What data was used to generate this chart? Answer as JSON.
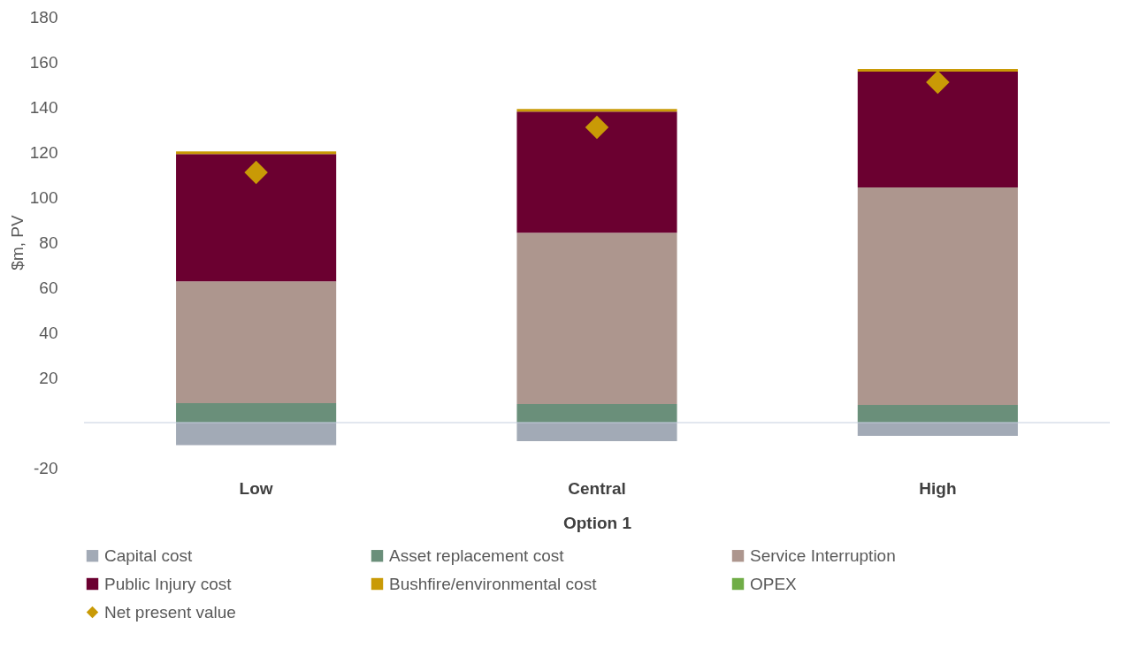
{
  "chart_data": {
    "type": "bar",
    "stacked": true,
    "xlabel": "Option 1",
    "ylabel": "$m, PV",
    "categories": [
      "Low",
      "Central",
      "High"
    ],
    "series": [
      {
        "name": "Capital cost",
        "color": "#a2aab6",
        "values": [
          -10,
          -8.2,
          -5.9
        ]
      },
      {
        "name": "Asset replacement cost",
        "color": "#6a8f7a",
        "values": [
          8.6,
          8.2,
          7.8
        ]
      },
      {
        "name": "Service Interruption",
        "color": "#ad968e",
        "values": [
          54,
          76,
          96.5
        ]
      },
      {
        "name": "Public Injury cost",
        "color": "#6b0030",
        "values": [
          56.5,
          53.7,
          51.4
        ]
      },
      {
        "name": "Bushfire/environmental cost",
        "color": "#c99a06",
        "values": [
          1.2,
          1.2,
          1.2
        ]
      },
      {
        "name": "OPEX",
        "color": "#70ad47",
        "values": [
          0,
          0,
          0
        ]
      },
      {
        "name": "Net present value",
        "type": "scatter",
        "marker": "diamond",
        "color": "#c99a06",
        "values": [
          111,
          131,
          151
        ]
      }
    ],
    "ylim": [
      -20,
      180
    ],
    "yticks": [
      -20,
      20,
      40,
      60,
      80,
      100,
      120,
      140,
      160,
      180
    ],
    "grid": false,
    "legend": "bottom"
  }
}
